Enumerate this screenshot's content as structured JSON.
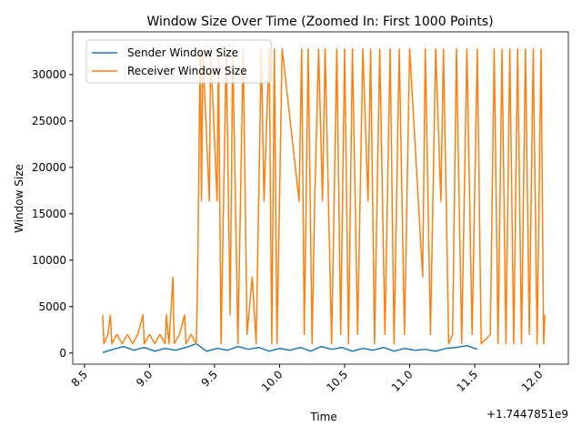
{
  "chart_data": {
    "type": "line",
    "title": "Window Size Over Time (Zoomed In: First 1000 Points)",
    "x_label": "Time",
    "y_label": "Window Size",
    "x_offset_label": "+1.7447851e9",
    "legend": "upper left",
    "xlim": [
      8.41,
      12.22
    ],
    "ylim": [
      -1200,
      34600
    ],
    "xticks": [
      8.5,
      {
        "value": 9,
        "label": "9.0"
      },
      9.5,
      {
        "value": 10,
        "label": "10.0"
      },
      10.5,
      {
        "value": 11,
        "label": "11.0"
      },
      11.5,
      {
        "value": 12,
        "label": "12.0"
      }
    ],
    "yticks": [
      0,
      5000,
      10000,
      15000,
      20000,
      25000,
      30000
    ],
    "series": [
      {
        "name": "Sender Window Size",
        "color": "#1f77b4",
        "x": [
          8.64,
          8.72,
          8.8,
          8.88,
          8.96,
          9.04,
          9.12,
          9.2,
          9.28,
          9.36,
          9.44,
          9.52,
          9.6,
          9.68,
          9.76,
          9.84,
          9.92,
          10.0,
          10.08,
          10.16,
          10.24,
          10.32,
          10.4,
          10.48,
          10.56,
          10.64,
          10.72,
          10.8,
          10.88,
          10.96,
          11.04,
          11.12,
          11.2,
          11.28,
          11.36,
          11.44,
          11.52
        ],
        "values": [
          50,
          400,
          700,
          300,
          600,
          200,
          500,
          300,
          600,
          1000,
          200,
          500,
          300,
          700,
          400,
          600,
          200,
          500,
          300,
          600,
          200,
          700,
          400,
          600,
          200,
          500,
          300,
          600,
          200,
          500,
          300,
          400,
          200,
          500,
          600,
          800,
          400
        ]
      },
      {
        "name": "Receiver Window Size",
        "color": "#ff7f0e",
        "x": [
          8.64,
          8.65,
          8.68,
          8.7,
          8.71,
          8.75,
          8.79,
          8.83,
          8.87,
          8.91,
          8.95,
          8.96,
          9.0,
          9.04,
          9.08,
          9.12,
          9.13,
          9.15,
          9.18,
          9.19,
          9.23,
          9.27,
          9.28,
          9.32,
          9.36,
          9.37,
          9.39,
          9.4,
          9.41,
          9.46,
          9.47,
          9.52,
          9.53,
          9.55,
          9.59,
          9.62,
          9.64,
          9.68,
          9.72,
          9.75,
          9.79,
          9.82,
          9.86,
          9.88,
          9.92,
          9.94,
          9.96,
          9.98,
          10.02,
          10.15,
          10.17,
          10.19,
          10.22,
          10.25,
          10.27,
          10.3,
          10.33,
          10.35,
          10.4,
          10.44,
          10.47,
          10.5,
          10.53,
          10.56,
          10.6,
          10.64,
          10.68,
          10.7,
          10.73,
          10.77,
          10.81,
          10.85,
          10.88,
          10.92,
          10.96,
          11.0,
          11.1,
          11.12,
          11.16,
          11.2,
          11.24,
          11.26,
          11.3,
          11.33,
          11.36,
          11.4,
          11.44,
          11.48,
          11.52,
          11.55,
          11.62,
          11.65,
          11.68,
          11.71,
          11.74,
          11.77,
          11.8,
          11.83,
          11.86,
          11.89,
          11.92,
          11.95,
          11.98,
          12.01,
          12.03,
          12.04
        ],
        "values": [
          4096,
          1000,
          2000,
          4096,
          1000,
          2000,
          1000,
          2000,
          1000,
          2000,
          4096,
          1000,
          2000,
          1000,
          2000,
          1000,
          4096,
          1000,
          8192,
          1000,
          2000,
          4096,
          1000,
          2000,
          1000,
          8192,
          32768,
          16384,
          32768,
          16384,
          32768,
          16384,
          32768,
          1000,
          32768,
          4096,
          32768,
          1000,
          32768,
          2000,
          8192,
          1000,
          32768,
          16384,
          32768,
          1000,
          32768,
          1000,
          32768,
          16384,
          32768,
          2000,
          32768,
          1000,
          16384,
          32768,
          16384,
          32768,
          1000,
          32768,
          2000,
          32768,
          1000,
          32768,
          2000,
          32768,
          16384,
          32768,
          1000,
          32768,
          2000,
          32768,
          1000,
          32768,
          2000,
          32768,
          8192,
          32768,
          2000,
          32768,
          16384,
          32768,
          1000,
          2000,
          32768,
          1000,
          32768,
          2000,
          32768,
          1000,
          2000,
          32768,
          1000,
          32768,
          1000,
          32768,
          1000,
          32768,
          1000,
          32768,
          2000,
          32768,
          1000,
          32768,
          1000,
          4096
        ]
      }
    ]
  }
}
